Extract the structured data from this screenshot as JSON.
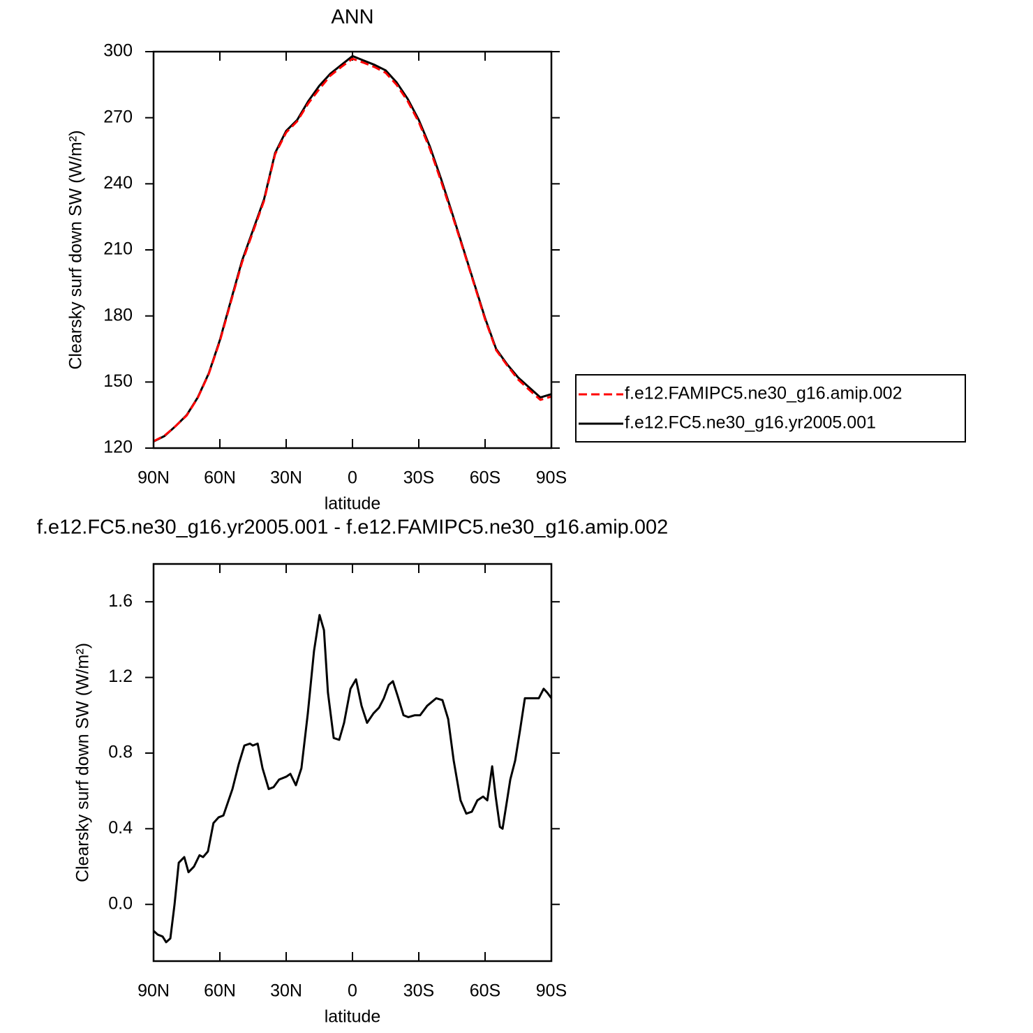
{
  "chart_data": [
    {
      "type": "line",
      "title": "ANN",
      "xlabel": "latitude",
      "ylabel": "Clearsky surf down SW (W/m²)",
      "x": [
        90,
        85,
        80,
        75,
        70,
        65,
        60,
        55,
        50,
        45,
        40,
        35,
        30,
        25,
        20,
        15,
        10,
        5,
        0,
        -5,
        -10,
        -15,
        -20,
        -25,
        -30,
        -35,
        -40,
        -45,
        -50,
        -55,
        -60,
        -65,
        -70,
        -75,
        -80,
        -85,
        -90
      ],
      "xlim": [
        90,
        -90
      ],
      "xticks": [
        {
          "value": 90,
          "label": "90N"
        },
        {
          "value": 60,
          "label": "60N"
        },
        {
          "value": 30,
          "label": "30N"
        },
        0,
        {
          "value": -30,
          "label": "30S"
        },
        {
          "value": -60,
          "label": "60S"
        },
        {
          "value": -90,
          "label": "90S"
        }
      ],
      "ylim": [
        120,
        300
      ],
      "yticks": [
        120,
        150,
        180,
        210,
        240,
        270,
        300
      ],
      "legend": "right",
      "series": [
        {
          "name": "f.e12.FAMIPC5.ne30_g16.amip.002",
          "color": "#ff0000",
          "dashed": true,
          "values": [
            123.1,
            125.7,
            130.0,
            134.8,
            142.8,
            153.7,
            168.5,
            186.4,
            204.2,
            218.2,
            232.3,
            253.4,
            263.3,
            268.4,
            276.5,
            283.0,
            289.1,
            293.1,
            296.8,
            295.0,
            293.0,
            290.4,
            284.9,
            277.5,
            268.0,
            255.9,
            241.4,
            226.2,
            210.5,
            194.5,
            178.4,
            164.5,
            157.5,
            151.1,
            146.4,
            141.9,
            143.4
          ]
        },
        {
          "name": "f.e12.FC5.ne30_g16.yr2005.001",
          "color": "#000000",
          "dashed": false,
          "values": [
            123,
            125.5,
            130,
            135,
            143,
            154,
            169,
            187,
            205,
            219,
            233,
            254,
            264,
            269,
            277.5,
            284.5,
            290,
            294,
            298,
            296,
            294,
            291.5,
            286,
            278.5,
            269,
            257,
            242.5,
            227,
            211,
            195,
            179,
            165,
            158,
            152,
            147.5,
            143,
            144.5
          ]
        }
      ]
    },
    {
      "type": "line",
      "title": "f.e12.FC5.ne30_g16.yr2005.001 - f.e12.FAMIPC5.ne30_g16.amip.002",
      "xlabel": "latitude",
      "ylabel": "Clearsky surf down SW (W/m²)",
      "x": [
        90,
        88.1,
        85.9,
        84.3,
        82.4,
        80.5,
        78.6,
        76.1,
        74.2,
        71.7,
        69.2,
        67.6,
        65.4,
        62.9,
        60.6,
        58.4,
        54.3,
        51.5,
        48.9,
        46.4,
        45.1,
        42.9,
        40.7,
        37.9,
        35.7,
        33.2,
        30,
        28.1,
        25.6,
        23.1,
        20.2,
        17.4,
        14.9,
        12.9,
        11.1,
        8.5,
        6,
        3.8,
        0.9,
        -1.6,
        -4.1,
        -6.6,
        -9.5,
        -12,
        -14.2,
        -16.4,
        -18.3,
        -20.5,
        -23.1,
        -25.3,
        -28.1,
        -30.6,
        -33.8,
        -37.9,
        -40.7,
        -43.3,
        -45.8,
        -48.9,
        -51.5,
        -54,
        -56.5,
        -59.1,
        -61,
        -63.2,
        -64.8,
        -66.7,
        -67.9,
        -69.8,
        -71.4,
        -73.6,
        -75.8,
        -78,
        -79.9,
        -82.4,
        -84.3,
        -86.5,
        -88.1,
        -90
      ],
      "xlim": [
        90,
        -90
      ],
      "xticks": [
        {
          "value": 90,
          "label": "90N"
        },
        {
          "value": 60,
          "label": "60N"
        },
        {
          "value": 30,
          "label": "30N"
        },
        0,
        {
          "value": -30,
          "label": "30S"
        },
        {
          "value": -60,
          "label": "60S"
        },
        {
          "value": -90,
          "label": "90S"
        }
      ],
      "ylim": [
        -0.3,
        1.8
      ],
      "yticks": [
        {
          "value": 0,
          "label": "0.0"
        },
        0.4,
        0.8,
        1.2,
        1.6
      ],
      "series": [
        {
          "color": "#000000",
          "dashed": false,
          "values": [
            -0.14,
            -0.16,
            -0.17,
            -0.2,
            -0.18,
            0,
            0.22,
            0.25,
            0.17,
            0.2,
            0.26,
            0.25,
            0.28,
            0.43,
            0.46,
            0.47,
            0.61,
            0.74,
            0.84,
            0.85,
            0.84,
            0.85,
            0.72,
            0.61,
            0.62,
            0.66,
            0.675,
            0.69,
            0.63,
            0.72,
            1.01,
            1.34,
            1.53,
            1.45,
            1.12,
            0.88,
            0.87,
            0.96,
            1.14,
            1.19,
            1.05,
            0.96,
            1.01,
            1.04,
            1.09,
            1.16,
            1.18,
            1.1,
            1.0,
            0.99,
            1.0,
            1.0,
            1.05,
            1.09,
            1.08,
            0.98,
            0.76,
            0.55,
            0.48,
            0.49,
            0.55,
            0.57,
            0.55,
            0.73,
            0.57,
            0.41,
            0.4,
            0.54,
            0.66,
            0.76,
            0.92,
            1.09,
            1.09,
            1.09,
            1.09,
            1.14,
            1.12,
            1.09
          ]
        }
      ]
    }
  ]
}
